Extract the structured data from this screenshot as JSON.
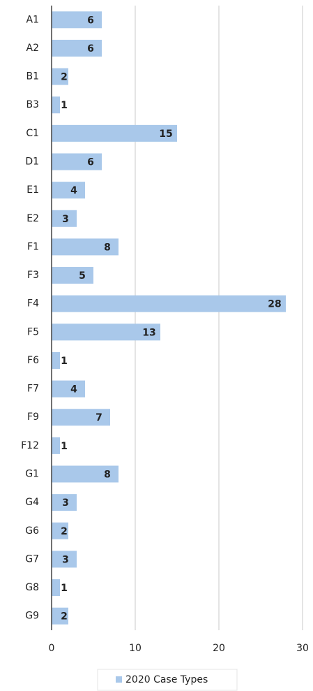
{
  "chart_data": {
    "type": "barh",
    "categories": [
      "A1",
      "A2",
      "B1",
      "B3",
      "C1",
      "D1",
      "E1",
      "E2",
      "F1",
      "F3",
      "F4",
      "F5",
      "F6",
      "F7",
      "F9",
      "F12",
      "G1",
      "G4",
      "G6",
      "G7",
      "G8",
      "G9"
    ],
    "series": [
      {
        "name": "2020 Case Types",
        "color": "#a9c8ea",
        "values": [
          6,
          6,
          2,
          1,
          15,
          6,
          4,
          3,
          8,
          5,
          28,
          13,
          1,
          4,
          7,
          1,
          8,
          3,
          2,
          3,
          1,
          2
        ]
      }
    ],
    "xlim": [
      0,
      30
    ],
    "xticks": [
      0,
      10,
      20,
      30
    ],
    "grid": true,
    "legend": "bottom"
  }
}
